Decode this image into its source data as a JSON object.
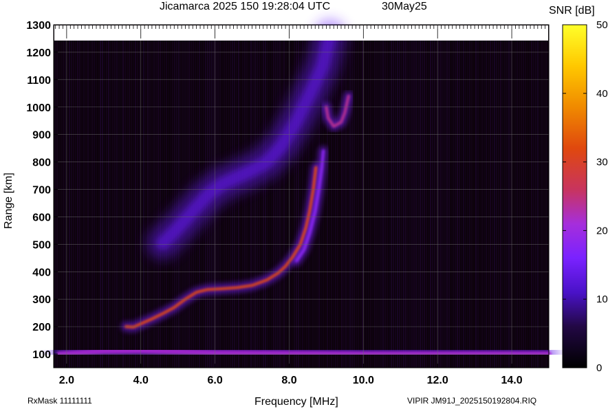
{
  "header": {
    "title": "Jicamarca 2025 150 19:28:04 UTC",
    "date": "30May25"
  },
  "footer": {
    "left": "RxMask 11111111",
    "right": "VIPIR  JM91J_2025150192804.RIQ"
  },
  "chart_data": {
    "type": "heatmap",
    "xlabel": "Frequency [MHz]",
    "ylabel": "Range [km]",
    "xlim": [
      1.65,
      15.0
    ],
    "ylim": [
      50,
      1300
    ],
    "x_ticks": [
      "2.0",
      "4.0",
      "6.0",
      "8.0",
      "10.0",
      "12.0",
      "14.0"
    ],
    "x_tick_values": [
      2,
      4,
      6,
      8,
      10,
      12,
      14
    ],
    "y_ticks": [
      "100",
      "200",
      "300",
      "400",
      "500",
      "600",
      "700",
      "800",
      "900",
      "1000",
      "1100",
      "1200",
      "1300"
    ],
    "y_tick_values": [
      100,
      200,
      300,
      400,
      500,
      600,
      700,
      800,
      900,
      1000,
      1100,
      1200,
      1300
    ],
    "grid": true,
    "colorbar": {
      "label": "SNR [dB]",
      "range": [
        0,
        50
      ],
      "ticks": [
        "0",
        "10",
        "20",
        "30",
        "40",
        "50"
      ],
      "tick_values": [
        0,
        10,
        20,
        30,
        40,
        50
      ],
      "colors": [
        "#000000",
        "#2a0a5e",
        "#5a1cff",
        "#9933ff",
        "#cc3366",
        "#e65c00",
        "#ffd400",
        "#ffff33"
      ]
    },
    "traces": [
      {
        "label": "",
        "points": [
          [
            3.6,
            200
          ],
          [
            3.8,
            198
          ],
          [
            4.0,
            210
          ],
          [
            4.3,
            228
          ],
          [
            4.6,
            248
          ],
          [
            4.9,
            270
          ],
          [
            5.2,
            300
          ],
          [
            5.5,
            325
          ],
          [
            5.8,
            335
          ],
          [
            6.2,
            338
          ],
          [
            6.6,
            342
          ],
          [
            7.0,
            350
          ],
          [
            7.4,
            370
          ],
          [
            7.7,
            395
          ],
          [
            7.9,
            420
          ],
          [
            8.1,
            455
          ],
          [
            8.3,
            500
          ],
          [
            8.45,
            560
          ],
          [
            8.55,
            620
          ],
          [
            8.65,
            700
          ],
          [
            8.72,
            780
          ]
        ],
        "snr": 32
      },
      {
        "label": "",
        "points": [
          [
            8.2,
            440
          ],
          [
            8.4,
            480
          ],
          [
            8.55,
            540
          ],
          [
            8.7,
            620
          ],
          [
            8.8,
            700
          ],
          [
            8.88,
            780
          ],
          [
            8.92,
            840
          ]
        ],
        "snr": 18
      },
      {
        "label": "",
        "points": [
          [
            4.6,
            505
          ],
          [
            5.0,
            560
          ],
          [
            5.4,
            620
          ],
          [
            5.8,
            680
          ],
          [
            6.2,
            720
          ],
          [
            6.6,
            745
          ],
          [
            7.0,
            770
          ],
          [
            7.4,
            800
          ],
          [
            7.8,
            860
          ],
          [
            8.2,
            950
          ],
          [
            8.6,
            1060
          ],
          [
            8.9,
            1150
          ],
          [
            9.1,
            1260
          ]
        ],
        "snr": 13
      },
      {
        "label": "",
        "points": [
          [
            9.0,
            1000
          ],
          [
            9.05,
            960
          ],
          [
            9.2,
            930
          ],
          [
            9.4,
            945
          ],
          [
            9.5,
            980
          ],
          [
            9.6,
            1040
          ]
        ],
        "snr": 24
      },
      {
        "label": "",
        "points": [
          [
            1.8,
            100
          ],
          [
            3.0,
            110
          ],
          [
            4.0,
            112
          ],
          [
            6.0,
            104
          ],
          [
            8.0,
            102
          ],
          [
            10.0,
            100
          ],
          [
            12.0,
            100
          ],
          [
            14.0,
            100
          ],
          [
            15.0,
            100
          ]
        ],
        "snr": 17
      }
    ]
  }
}
